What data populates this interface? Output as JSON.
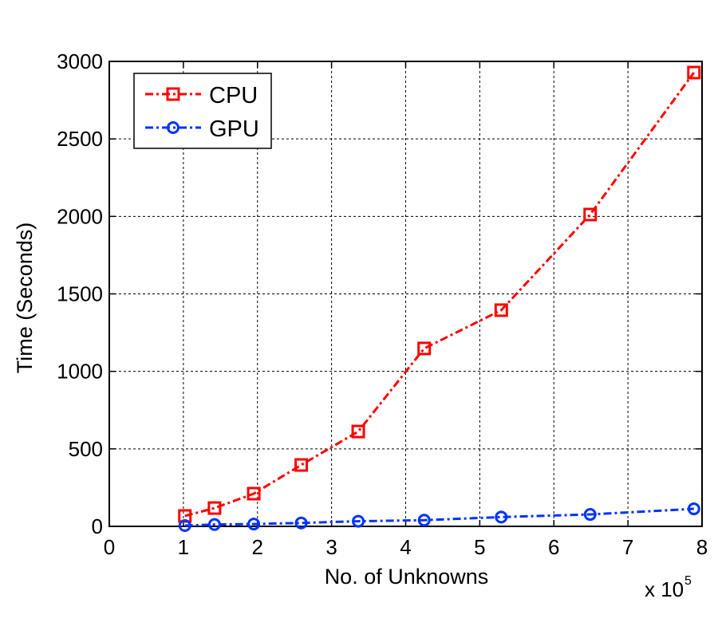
{
  "chart_data": {
    "type": "line",
    "title": "",
    "xlabel": "No. of Unknowns",
    "ylabel": "Time (Seconds)",
    "x_multiplier_label": "x 10",
    "x_multiplier_exponent": "5",
    "xlim": [
      0,
      8
    ],
    "ylim": [
      0,
      3000
    ],
    "xticks": [
      0,
      1,
      2,
      3,
      4,
      5,
      6,
      7,
      8
    ],
    "yticks": [
      0,
      500,
      1000,
      1500,
      2000,
      2500,
      3000
    ],
    "grid": true,
    "legend_position": "top-left",
    "series": [
      {
        "name": "CPU",
        "color": "#ff0000",
        "marker": "square",
        "line_style": "dash-dot",
        "x": [
          1.02,
          1.42,
          1.95,
          2.59,
          3.36,
          4.25,
          5.29,
          6.49,
          7.89
        ],
        "y": [
          67,
          118,
          211,
          396,
          612,
          1148,
          1395,
          2012,
          2928
        ]
      },
      {
        "name": "GPU",
        "color": "#0033ff",
        "marker": "circle",
        "line_style": "dash-dot",
        "x": [
          1.02,
          1.42,
          1.95,
          2.59,
          3.36,
          4.25,
          5.29,
          6.49,
          7.89
        ],
        "y": [
          5,
          12,
          15,
          22,
          33,
          40,
          60,
          77,
          113
        ]
      }
    ]
  }
}
